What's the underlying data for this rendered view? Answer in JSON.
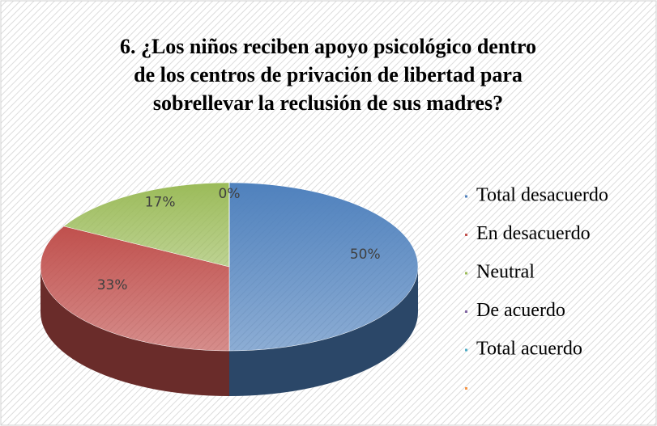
{
  "chart_data": {
    "type": "pie",
    "title": "6. ¿Los niños reciben apoyo psicológico dentro de los centros de privación de libertad para sobrellevar la reclusión de sus madres?",
    "categories": [
      "Total desacuerdo",
      "En desacuerdo",
      "Neutral",
      "De acuerdo",
      "Total acuerdo",
      null
    ],
    "values": [
      50,
      33,
      17,
      0,
      0,
      null
    ],
    "value_labels": [
      "50%",
      "33%",
      "17%",
      "0%",
      null,
      null
    ],
    "colors": [
      "#4f81bd",
      "#c0504d",
      "#9bbb59",
      "#8064a2",
      "#4bacc6",
      "#f79646"
    ],
    "legend": "right"
  }
}
